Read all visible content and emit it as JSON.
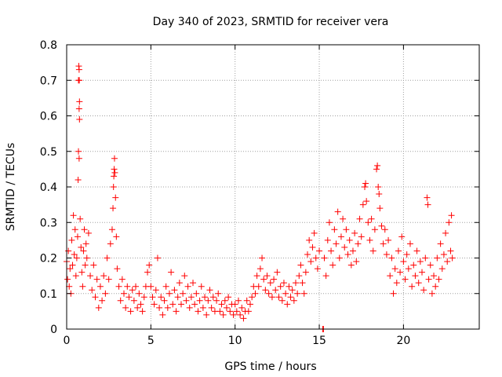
{
  "chart_data": {
    "type": "scatter",
    "title": "Day 340 of 2023, SRMTID for receiver vera",
    "xlabel": "GPS time / hours",
    "ylabel": "SRMTID / TECUs",
    "xlim": [
      0,
      24.5
    ],
    "ylim": [
      0,
      0.8
    ],
    "xticks": [
      0,
      5,
      10,
      15,
      20
    ],
    "xtick_labels": [
      "0",
      "5",
      "10",
      "15",
      "20"
    ],
    "yticks": [
      0,
      0.1,
      0.2,
      0.3,
      0.4,
      0.5,
      0.6,
      0.7,
      0.8
    ],
    "ytick_labels": [
      "0",
      "0.1",
      "0.2",
      "0.3",
      "0.4",
      "0.5",
      "0.6",
      "0.7",
      "0.8"
    ],
    "grid": true,
    "marker": "plus",
    "color": "#ff0000",
    "series": [
      {
        "name": "SRMTID",
        "points": [
          [
            0.0,
            0.19
          ],
          [
            0.05,
            0.14
          ],
          [
            0.1,
            0.22
          ],
          [
            0.15,
            0.12
          ],
          [
            0.2,
            0.17
          ],
          [
            0.25,
            0.1
          ],
          [
            0.3,
            0.25
          ],
          [
            0.35,
            0.18
          ],
          [
            0.4,
            0.32
          ],
          [
            0.45,
            0.21
          ],
          [
            0.5,
            0.28
          ],
          [
            0.55,
            0.15
          ],
          [
            0.6,
            0.2
          ],
          [
            0.65,
            0.26
          ],
          [
            0.7,
            0.7
          ],
          [
            0.72,
            0.74
          ],
          [
            0.74,
            0.73
          ],
          [
            0.75,
            0.7
          ],
          [
            0.76,
            0.64
          ],
          [
            0.74,
            0.62
          ],
          [
            0.76,
            0.59
          ],
          [
            0.7,
            0.5
          ],
          [
            0.74,
            0.48
          ],
          [
            0.68,
            0.42
          ],
          [
            0.8,
            0.31
          ],
          [
            0.85,
            0.23
          ],
          [
            0.9,
            0.16
          ],
          [
            0.95,
            0.12
          ],
          [
            1.0,
            0.22
          ],
          [
            1.05,
            0.28
          ],
          [
            1.1,
            0.18
          ],
          [
            1.15,
            0.24
          ],
          [
            1.2,
            0.2
          ],
          [
            1.3,
            0.27
          ],
          [
            1.4,
            0.15
          ],
          [
            1.5,
            0.11
          ],
          [
            1.6,
            0.18
          ],
          [
            1.7,
            0.09
          ],
          [
            1.8,
            0.14
          ],
          [
            1.9,
            0.06
          ],
          [
            2.0,
            0.12
          ],
          [
            2.1,
            0.08
          ],
          [
            2.2,
            0.15
          ],
          [
            2.3,
            0.1
          ],
          [
            2.4,
            0.2
          ],
          [
            2.5,
            0.14
          ],
          [
            2.6,
            0.24
          ],
          [
            2.7,
            0.28
          ],
          [
            2.75,
            0.34
          ],
          [
            2.78,
            0.4
          ],
          [
            2.8,
            0.43
          ],
          [
            2.82,
            0.45
          ],
          [
            2.84,
            0.48
          ],
          [
            2.86,
            0.44
          ],
          [
            2.9,
            0.37
          ],
          [
            2.95,
            0.26
          ],
          [
            3.0,
            0.17
          ],
          [
            3.1,
            0.12
          ],
          [
            3.2,
            0.08
          ],
          [
            3.3,
            0.14
          ],
          [
            3.4,
            0.1
          ],
          [
            3.5,
            0.06
          ],
          [
            3.6,
            0.12
          ],
          [
            3.7,
            0.09
          ],
          [
            3.8,
            0.05
          ],
          [
            3.9,
            0.11
          ],
          [
            4.0,
            0.08
          ],
          [
            4.1,
            0.12
          ],
          [
            4.2,
            0.06
          ],
          [
            4.3,
            0.1
          ],
          [
            4.4,
            0.07
          ],
          [
            4.5,
            0.05
          ],
          [
            4.6,
            0.09
          ],
          [
            4.7,
            0.12
          ],
          [
            4.8,
            0.16
          ],
          [
            4.9,
            0.18
          ],
          [
            5.0,
            0.12
          ],
          [
            5.1,
            0.09
          ],
          [
            5.2,
            0.07
          ],
          [
            5.3,
            0.11
          ],
          [
            5.4,
            0.2
          ],
          [
            5.5,
            0.06
          ],
          [
            5.6,
            0.09
          ],
          [
            5.7,
            0.04
          ],
          [
            5.8,
            0.08
          ],
          [
            5.9,
            0.12
          ],
          [
            6.0,
            0.06
          ],
          [
            6.1,
            0.1
          ],
          [
            6.2,
            0.16
          ],
          [
            6.3,
            0.07
          ],
          [
            6.4,
            0.11
          ],
          [
            6.5,
            0.05
          ],
          [
            6.6,
            0.09
          ],
          [
            6.7,
            0.13
          ],
          [
            6.8,
            0.07
          ],
          [
            6.9,
            0.1
          ],
          [
            7.0,
            0.15
          ],
          [
            7.1,
            0.08
          ],
          [
            7.2,
            0.12
          ],
          [
            7.3,
            0.06
          ],
          [
            7.4,
            0.09
          ],
          [
            7.5,
            0.13
          ],
          [
            7.6,
            0.07
          ],
          [
            7.7,
            0.1
          ],
          [
            7.8,
            0.05
          ],
          [
            7.9,
            0.08
          ],
          [
            8.0,
            0.12
          ],
          [
            8.1,
            0.06
          ],
          [
            8.2,
            0.09
          ],
          [
            8.3,
            0.04
          ],
          [
            8.4,
            0.08
          ],
          [
            8.5,
            0.11
          ],
          [
            8.6,
            0.06
          ],
          [
            8.7,
            0.09
          ],
          [
            8.8,
            0.05
          ],
          [
            8.9,
            0.08
          ],
          [
            9.0,
            0.1
          ],
          [
            9.1,
            0.05
          ],
          [
            9.2,
            0.07
          ],
          [
            9.3,
            0.04
          ],
          [
            9.4,
            0.08
          ],
          [
            9.5,
            0.06
          ],
          [
            9.6,
            0.09
          ],
          [
            9.7,
            0.05
          ],
          [
            9.8,
            0.07
          ],
          [
            9.9,
            0.04
          ],
          [
            10.0,
            0.07
          ],
          [
            10.1,
            0.05
          ],
          [
            10.2,
            0.08
          ],
          [
            10.3,
            0.04
          ],
          [
            10.4,
            0.06
          ],
          [
            10.5,
            0.03
          ],
          [
            10.6,
            0.05
          ],
          [
            10.7,
            0.08
          ],
          [
            10.8,
            0.05
          ],
          [
            10.9,
            0.07
          ],
          [
            11.0,
            0.09
          ],
          [
            11.1,
            0.12
          ],
          [
            11.2,
            0.1
          ],
          [
            11.3,
            0.15
          ],
          [
            11.4,
            0.12
          ],
          [
            11.5,
            0.17
          ],
          [
            11.6,
            0.2
          ],
          [
            11.7,
            0.14
          ],
          [
            11.8,
            0.11
          ],
          [
            11.9,
            0.15
          ],
          [
            12.0,
            0.1
          ],
          [
            12.1,
            0.13
          ],
          [
            12.2,
            0.09
          ],
          [
            12.3,
            0.14
          ],
          [
            12.4,
            0.11
          ],
          [
            12.5,
            0.16
          ],
          [
            12.6,
            0.09
          ],
          [
            12.7,
            0.12
          ],
          [
            12.8,
            0.08
          ],
          [
            12.9,
            0.13
          ],
          [
            13.0,
            0.1
          ],
          [
            13.1,
            0.07
          ],
          [
            13.2,
            0.12
          ],
          [
            13.3,
            0.09
          ],
          [
            13.4,
            0.11
          ],
          [
            13.5,
            0.08
          ],
          [
            13.6,
            0.13
          ],
          [
            13.7,
            0.1
          ],
          [
            13.8,
            0.15
          ],
          [
            13.9,
            0.18
          ],
          [
            14.0,
            0.13
          ],
          [
            14.1,
            0.1
          ],
          [
            14.2,
            0.16
          ],
          [
            14.3,
            0.21
          ],
          [
            14.4,
            0.25
          ],
          [
            14.5,
            0.19
          ],
          [
            14.6,
            0.23
          ],
          [
            14.7,
            0.27
          ],
          [
            14.8,
            0.2
          ],
          [
            14.9,
            0.17
          ],
          [
            15.0,
            0.22
          ],
          [
            15.2,
            0.0
          ],
          [
            15.25,
            0.0
          ],
          [
            15.3,
            0.2
          ],
          [
            15.4,
            0.15
          ],
          [
            15.5,
            0.25
          ],
          [
            15.6,
            0.3
          ],
          [
            15.7,
            0.22
          ],
          [
            15.8,
            0.18
          ],
          [
            15.9,
            0.28
          ],
          [
            16.0,
            0.24
          ],
          [
            16.1,
            0.33
          ],
          [
            16.2,
            0.2
          ],
          [
            16.3,
            0.26
          ],
          [
            16.4,
            0.31
          ],
          [
            16.5,
            0.23
          ],
          [
            16.6,
            0.28
          ],
          [
            16.7,
            0.21
          ],
          [
            16.8,
            0.25
          ],
          [
            16.9,
            0.18
          ],
          [
            17.0,
            0.22
          ],
          [
            17.1,
            0.27
          ],
          [
            17.2,
            0.19
          ],
          [
            17.3,
            0.24
          ],
          [
            17.4,
            0.31
          ],
          [
            17.5,
            0.26
          ],
          [
            17.6,
            0.35
          ],
          [
            17.7,
            0.4
          ],
          [
            17.75,
            0.41
          ],
          [
            17.8,
            0.36
          ],
          [
            17.9,
            0.3
          ],
          [
            18.0,
            0.25
          ],
          [
            18.1,
            0.31
          ],
          [
            18.2,
            0.22
          ],
          [
            18.3,
            0.28
          ],
          [
            18.4,
            0.45
          ],
          [
            18.45,
            0.46
          ],
          [
            18.5,
            0.4
          ],
          [
            18.55,
            0.38
          ],
          [
            18.6,
            0.34
          ],
          [
            18.7,
            0.29
          ],
          [
            18.8,
            0.24
          ],
          [
            18.9,
            0.28
          ],
          [
            19.0,
            0.21
          ],
          [
            19.1,
            0.25
          ],
          [
            19.2,
            0.15
          ],
          [
            19.3,
            0.2
          ],
          [
            19.4,
            0.1
          ],
          [
            19.5,
            0.17
          ],
          [
            19.6,
            0.13
          ],
          [
            19.7,
            0.22
          ],
          [
            19.8,
            0.16
          ],
          [
            19.9,
            0.26
          ],
          [
            20.0,
            0.19
          ],
          [
            20.1,
            0.14
          ],
          [
            20.2,
            0.21
          ],
          [
            20.3,
            0.17
          ],
          [
            20.4,
            0.24
          ],
          [
            20.5,
            0.12
          ],
          [
            20.6,
            0.18
          ],
          [
            20.7,
            0.15
          ],
          [
            20.8,
            0.22
          ],
          [
            20.9,
            0.13
          ],
          [
            21.0,
            0.19
          ],
          [
            21.1,
            0.16
          ],
          [
            21.2,
            0.11
          ],
          [
            21.3,
            0.2
          ],
          [
            21.4,
            0.37
          ],
          [
            21.45,
            0.35
          ],
          [
            21.5,
            0.14
          ],
          [
            21.6,
            0.18
          ],
          [
            21.7,
            0.1
          ],
          [
            21.8,
            0.15
          ],
          [
            21.9,
            0.12
          ],
          [
            22.0,
            0.2
          ],
          [
            22.1,
            0.14
          ],
          [
            22.2,
            0.24
          ],
          [
            22.3,
            0.17
          ],
          [
            22.4,
            0.21
          ],
          [
            22.5,
            0.27
          ],
          [
            22.6,
            0.19
          ],
          [
            22.7,
            0.3
          ],
          [
            22.8,
            0.22
          ],
          [
            22.85,
            0.32
          ],
          [
            22.9,
            0.2
          ]
        ]
      }
    ]
  }
}
